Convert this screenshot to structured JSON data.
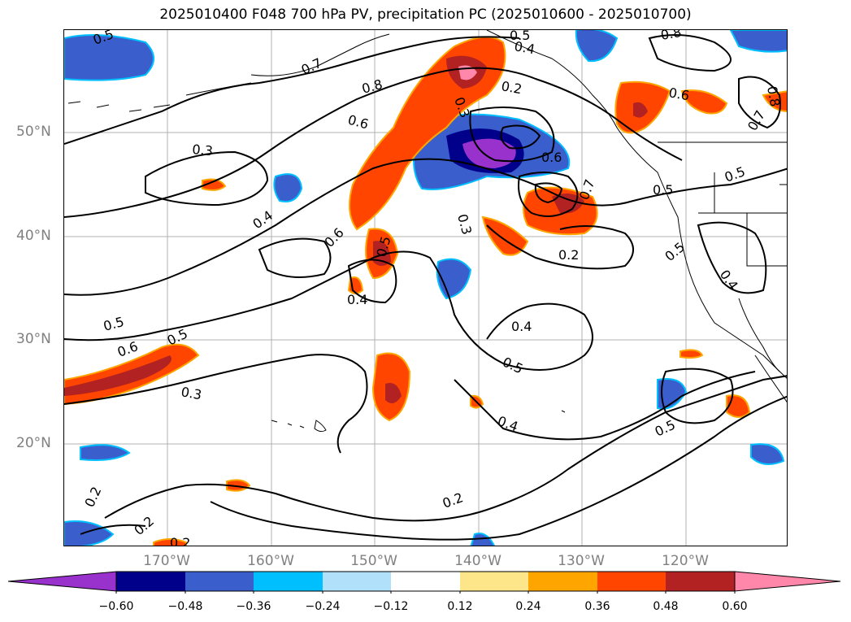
{
  "title": "2025010400 F048 700 hPa PV, precipitation PC (2025010600 - 2025010700)",
  "latitude_labels": [
    "50°N",
    "40°N",
    "30°N",
    "20°N"
  ],
  "longitude_labels": [
    "170°W",
    "160°W",
    "150°W",
    "140°W",
    "130°W",
    "120°W"
  ],
  "contour_labels": [
    "0.5",
    "0.7",
    "0.8",
    "0.6",
    "0.3",
    "0.2",
    "0.3",
    "0.6",
    "0.7",
    "0.8",
    "0.6",
    "0.8",
    "0.7",
    "0.5",
    "0.5",
    "0.4",
    "0.6",
    "0.5",
    "0.4",
    "0.3",
    "0.2",
    "0.5",
    "0.4",
    "0.5",
    "0.6",
    "0.5",
    "0.3",
    "0.4",
    "0.5",
    "0.5",
    "0.4",
    "0.2",
    "0.2",
    "0.2",
    "0.2",
    "0.4",
    "0.5"
  ],
  "colorbar": {
    "labels": [
      "−0.60",
      "−0.48",
      "−0.36",
      "−0.24",
      "−0.12",
      "0.12",
      "0.24",
      "0.36",
      "0.48",
      "0.60"
    ],
    "colors": [
      "#9932cc",
      "#00008b",
      "#3a5fcd",
      "#00bfff",
      "#b0e0fa",
      "#ffffff",
      "#fde68a",
      "#ffa500",
      "#ff4500",
      "#b22222",
      "#ff88aa"
    ]
  }
}
